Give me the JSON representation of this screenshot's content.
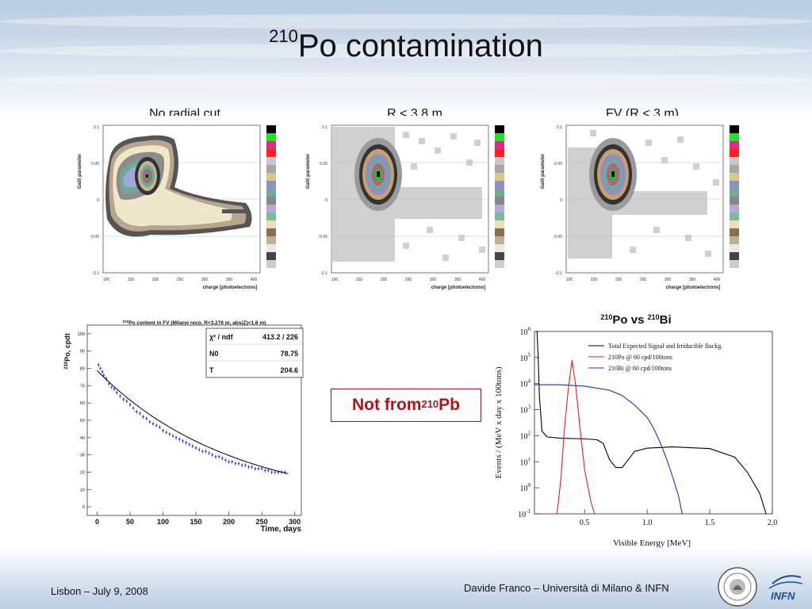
{
  "slide": {
    "title_sup": "210",
    "title_main": "Po contamination",
    "note_prefix": "Not from ",
    "note_sup": "210",
    "note_suffix": "Pb",
    "footer_left": "Lisbon – July 9, 2008",
    "footer_right": "Davide Franco – Università di Milano & INFN",
    "logo_text": "INFN"
  },
  "panels": [
    {
      "label": "No radial cut",
      "xlabel": "charge [photoelectrons]",
      "ylabel": "Gatti parameter"
    },
    {
      "label": "R < 3.8 m",
      "xlabel": "charge [photoelectrons]",
      "ylabel": "Gatti parameter"
    },
    {
      "label": "FV (R < 3 m)",
      "xlabel": "charge [photoelectrons]",
      "ylabel": "Gatti parameter"
    }
  ],
  "chart_data": [
    {
      "type": "heatmap",
      "title": "No radial cut",
      "xlabel": "charge [photoelectrons]",
      "ylabel": "Gatti parameter",
      "xlim": [
        100,
        420
      ],
      "ylim": [
        -0.1,
        0.1
      ],
      "x_ticks": [
        "100",
        "150",
        "200",
        "250",
        "300",
        "350",
        "400"
      ],
      "y_ticks": [
        "-0.1",
        "-0.05",
        "0",
        "0.05",
        "0.1"
      ],
      "peak": {
        "x": 190,
        "y": 0.033
      }
    },
    {
      "type": "heatmap",
      "title": "R < 3.8 m",
      "xlabel": "charge [photoelectrons]",
      "ylabel": "Gatti parameter",
      "xlim": [
        100,
        420
      ],
      "ylim": [
        -0.1,
        0.1
      ],
      "x_ticks": [
        "100",
        "150",
        "200",
        "250",
        "300",
        "350",
        "400"
      ],
      "y_ticks": [
        "-0.1",
        "-0.05",
        "0",
        "0.05",
        "0.1"
      ],
      "peak": {
        "x": 190,
        "y": 0.035
      }
    },
    {
      "type": "heatmap",
      "title": "FV (R < 3 m)",
      "xlabel": "charge [photoelectrons]",
      "ylabel": "Gatti parameter",
      "xlim": [
        100,
        420
      ],
      "ylim": [
        -0.1,
        0.1
      ],
      "x_ticks": [
        "100",
        "150",
        "200",
        "250",
        "300",
        "350",
        "400"
      ],
      "y_ticks": [
        "-0.1",
        "-0.05",
        "0",
        "0.05",
        "0.1"
      ],
      "peak": {
        "x": 190,
        "y": 0.035
      }
    },
    {
      "type": "scatter",
      "title_sup": "210",
      "title": "Po content in FV (Milano reco, R<3.276 m, abs(Z)<1.8 m)",
      "xlabel": "Time, days",
      "ylabel_sup": "210",
      "ylabel": "Po, cpdt",
      "xlim": [
        -15,
        310
      ],
      "ylim": [
        -5,
        105
      ],
      "x_ticks": [
        0,
        50,
        100,
        150,
        200,
        250,
        300
      ],
      "y_ticks": [
        0,
        10,
        20,
        30,
        40,
        50,
        60,
        70,
        80,
        90,
        100
      ],
      "fit": {
        "N0": 78.75,
        "T": 204.6
      },
      "stats": [
        {
          "key": "χ² / ndf",
          "value": "413.2 / 226"
        },
        {
          "key": "N0",
          "value": "78.75"
        },
        {
          "key": "T",
          "value": "204.6"
        }
      ],
      "points": [
        [
          2,
          82
        ],
        [
          5,
          80
        ],
        [
          8,
          78
        ],
        [
          10,
          76
        ],
        [
          14,
          74
        ],
        [
          18,
          71
        ],
        [
          22,
          69
        ],
        [
          26,
          68
        ],
        [
          30,
          66
        ],
        [
          35,
          64
        ],
        [
          40,
          62
        ],
        [
          45,
          61
        ],
        [
          50,
          59
        ],
        [
          55,
          57
        ],
        [
          60,
          55
        ],
        [
          65,
          54
        ],
        [
          70,
          52
        ],
        [
          75,
          51
        ],
        [
          80,
          49
        ],
        [
          85,
          48
        ],
        [
          90,
          47
        ],
        [
          95,
          46
        ],
        [
          100,
          44
        ],
        [
          105,
          43
        ],
        [
          110,
          42
        ],
        [
          115,
          41
        ],
        [
          120,
          40
        ],
        [
          125,
          39
        ],
        [
          130,
          38
        ],
        [
          135,
          37
        ],
        [
          140,
          36
        ],
        [
          145,
          35
        ],
        [
          150,
          34
        ],
        [
          155,
          33
        ],
        [
          160,
          32
        ],
        [
          165,
          32
        ],
        [
          170,
          31
        ],
        [
          175,
          30
        ],
        [
          180,
          29
        ],
        [
          185,
          29
        ],
        [
          190,
          28
        ],
        [
          195,
          27
        ],
        [
          200,
          26
        ],
        [
          205,
          26
        ],
        [
          210,
          25
        ],
        [
          215,
          25
        ],
        [
          220,
          24
        ],
        [
          225,
          24
        ],
        [
          230,
          23
        ],
        [
          235,
          23
        ],
        [
          240,
          22
        ],
        [
          245,
          22
        ],
        [
          250,
          22
        ],
        [
          255,
          21
        ],
        [
          260,
          21
        ],
        [
          265,
          20
        ],
        [
          270,
          20
        ],
        [
          275,
          20
        ],
        [
          280,
          20
        ],
        [
          285,
          20
        ]
      ]
    },
    {
      "type": "line",
      "title_sup1": "210",
      "title_a": "Po vs ",
      "title_sup2": "210",
      "title_b": "Bi",
      "xlabel": "Visible Energy [MeV]",
      "ylabel": "Events / (MeV x day x 100tons)",
      "xscale": "linear",
      "yscale": "log",
      "xlim": [
        0.1,
        2.0
      ],
      "ylim": [
        0.1,
        1000000
      ],
      "x_ticks": [
        "0.5",
        "1.0",
        "1.5",
        "2.0"
      ],
      "y_ticks": [
        "10^-1",
        "10^0",
        "10^1",
        "10^2",
        "10^3",
        "10^4",
        "10^5",
        "10^6"
      ],
      "legend_position": "top-right",
      "series": [
        {
          "name": "Total Expected Signal and Irriducible Backg.",
          "color": "#000000",
          "points": [
            [
              0.12,
              1000000
            ],
            [
              0.13,
              100000
            ],
            [
              0.14,
              3000
            ],
            [
              0.16,
              150
            ],
            [
              0.2,
              90
            ],
            [
              0.3,
              80
            ],
            [
              0.5,
              75
            ],
            [
              0.6,
              70
            ],
            [
              0.65,
              50
            ],
            [
              0.7,
              12
            ],
            [
              0.75,
              6
            ],
            [
              0.8,
              6
            ],
            [
              0.85,
              12
            ],
            [
              0.9,
              25
            ],
            [
              1.0,
              33
            ],
            [
              1.2,
              37
            ],
            [
              1.5,
              32
            ],
            [
              1.7,
              15
            ],
            [
              1.8,
              4
            ],
            [
              1.9,
              0.6
            ],
            [
              1.95,
              0.1
            ]
          ]
        },
        {
          "name": "210Po @ 60 cpd/100tons",
          "color": "#e02020",
          "points": [
            [
              0.28,
              0.1
            ],
            [
              0.31,
              2
            ],
            [
              0.34,
              200
            ],
            [
              0.37,
              6000
            ],
            [
              0.4,
              80000
            ],
            [
              0.43,
              8000
            ],
            [
              0.46,
              300
            ],
            [
              0.5,
              5
            ],
            [
              0.55,
              0.3
            ],
            [
              0.58,
              0.1
            ]
          ]
        },
        {
          "name": "210Bi @ 60 cpd/100tons",
          "color": "#2030c0",
          "points": [
            [
              0.1,
              9000
            ],
            [
              0.3,
              9000
            ],
            [
              0.5,
              8000
            ],
            [
              0.7,
              5500
            ],
            [
              0.8,
              3500
            ],
            [
              0.9,
              1500
            ],
            [
              1.0,
              500
            ],
            [
              1.05,
              200
            ],
            [
              1.1,
              60
            ],
            [
              1.15,
              15
            ],
            [
              1.2,
              3
            ],
            [
              1.25,
              0.5
            ],
            [
              1.28,
              0.1
            ]
          ]
        }
      ]
    }
  ]
}
